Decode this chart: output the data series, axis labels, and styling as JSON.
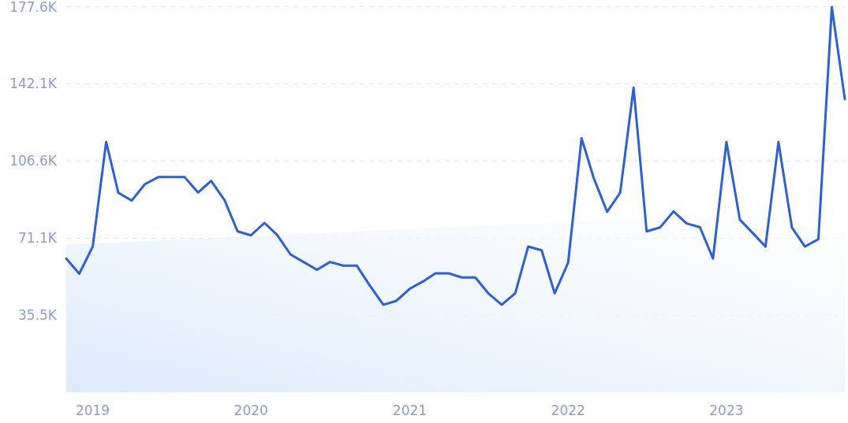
{
  "chart_data": {
    "type": "line",
    "marker": "none",
    "line_style": "solid",
    "grid": "y",
    "x": [
      "2018-11",
      "2018-12",
      "2019-01",
      "2019-02",
      "2019-03",
      "2019-04",
      "2019-05",
      "2019-06",
      "2019-07",
      "2019-08",
      "2019-09",
      "2019-10",
      "2019-11",
      "2019-12",
      "2020-01",
      "2020-02",
      "2020-03",
      "2020-04",
      "2020-05",
      "2020-06",
      "2020-07",
      "2020-08",
      "2020-09",
      "2020-10",
      "2020-11",
      "2020-12",
      "2021-01",
      "2021-02",
      "2021-03",
      "2021-04",
      "2021-05",
      "2021-06",
      "2021-07",
      "2021-08",
      "2021-09",
      "2021-10",
      "2021-11",
      "2021-12",
      "2022-01",
      "2022-02",
      "2022-03",
      "2022-04",
      "2022-05",
      "2022-06",
      "2022-07",
      "2022-08",
      "2022-09",
      "2022-10",
      "2022-11",
      "2022-12",
      "2023-01",
      "2023-02",
      "2023-03",
      "2023-04",
      "2023-05",
      "2023-06",
      "2023-07",
      "2023-08",
      "2023-09",
      "2023-10"
    ],
    "xlim": [
      "2018-11",
      "2023-10"
    ],
    "xticks": [
      "2019",
      "2020",
      "2021",
      "2022",
      "2023"
    ],
    "ylim": [
      0,
      177.6
    ],
    "yticks": [
      {
        "value": 35.5,
        "label": "35.5K"
      },
      {
        "value": 71.1,
        "label": "71.1K"
      },
      {
        "value": 106.6,
        "label": "106.6K"
      },
      {
        "value": 142.1,
        "label": "142.1K"
      },
      {
        "value": 177.6,
        "label": "177.6K"
      }
    ],
    "series": [
      {
        "type": "area",
        "color": "#dceafb",
        "x": [
          "2018-11",
          "2023-10"
        ],
        "values": [
          68.0,
          84.2
        ]
      },
      {
        "color": "#2b5fe0",
        "values": [
          61.6,
          54.6,
          67.1,
          115.3,
          91.9,
          88.3,
          95.8,
          99.1,
          99.1,
          99.1,
          92.0,
          97.4,
          88.5,
          74.1,
          72.3,
          78.0,
          72.5,
          63.5,
          60.0,
          56.4,
          60.0,
          58.3,
          58.3,
          49.1,
          40.3,
          42.1,
          47.7,
          51.1,
          54.8,
          54.8,
          52.9,
          52.9,
          45.6,
          40.3,
          45.6,
          67.1,
          65.4,
          45.6,
          59.6,
          117.0,
          98.7,
          83.1,
          91.9,
          140.3,
          74.1,
          75.9,
          83.3,
          77.8,
          76.0,
          61.6,
          115.3,
          79.5,
          73.7,
          67.1,
          115.3,
          75.9,
          67.1,
          70.5,
          177.4,
          135.0
        ]
      }
    ]
  }
}
